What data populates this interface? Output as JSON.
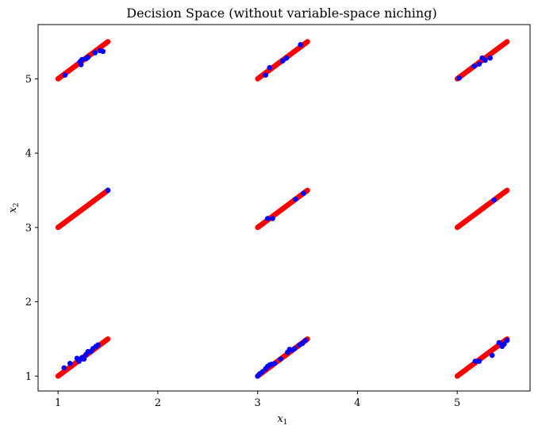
{
  "chart_data": {
    "type": "scatter",
    "title": "Decision Space (without variable-space niching)",
    "xlabel": "x",
    "xlabel_sub": "1",
    "ylabel": "x",
    "ylabel_sub": "2",
    "xlim": [
      0.8,
      5.73
    ],
    "ylim": [
      0.8,
      5.73
    ],
    "xticks": [
      1,
      2,
      3,
      4,
      5
    ],
    "yticks": [
      1,
      2,
      3,
      4,
      5
    ],
    "grid": false,
    "legend": "none",
    "series": [
      {
        "color": "#ff0000",
        "marker": "circle",
        "segments": [
          {
            "x0": 1.0,
            "y0": 1.0,
            "x1": 1.5,
            "y1": 1.5
          },
          {
            "x0": 1.0,
            "y0": 3.0,
            "x1": 1.5,
            "y1": 3.5
          },
          {
            "x0": 1.0,
            "y0": 5.0,
            "x1": 1.5,
            "y1": 5.5
          },
          {
            "x0": 3.0,
            "y0": 1.0,
            "x1": 3.5,
            "y1": 1.5
          },
          {
            "x0": 3.0,
            "y0": 3.0,
            "x1": 3.5,
            "y1": 3.5
          },
          {
            "x0": 3.0,
            "y0": 5.0,
            "x1": 3.5,
            "y1": 5.5
          },
          {
            "x0": 5.0,
            "y0": 1.0,
            "x1": 5.5,
            "y1": 1.5
          },
          {
            "x0": 5.0,
            "y0": 3.0,
            "x1": 5.5,
            "y1": 3.5
          },
          {
            "x0": 5.0,
            "y0": 5.0,
            "x1": 5.5,
            "y1": 5.5
          }
        ]
      },
      {
        "color": "#0000ff",
        "marker": "circle",
        "points": [
          [
            1.06,
            1.11
          ],
          [
            1.12,
            1.17
          ],
          [
            1.19,
            1.24
          ],
          [
            1.21,
            1.2
          ],
          [
            1.24,
            1.25
          ],
          [
            1.26,
            1.23
          ],
          [
            1.28,
            1.29
          ],
          [
            1.3,
            1.33
          ],
          [
            1.33,
            1.33
          ],
          [
            1.35,
            1.37
          ],
          [
            1.38,
            1.4
          ],
          [
            1.4,
            1.42
          ],
          [
            1.07,
            5.05
          ],
          [
            1.22,
            5.23
          ],
          [
            1.23,
            5.19
          ],
          [
            1.24,
            5.26
          ],
          [
            1.28,
            5.27
          ],
          [
            1.3,
            5.29
          ],
          [
            1.37,
            5.35
          ],
          [
            1.42,
            5.38
          ],
          [
            1.45,
            5.37
          ],
          [
            1.5,
            3.5
          ],
          [
            3.0,
            1.0
          ],
          [
            3.02,
            1.03
          ],
          [
            3.05,
            1.06
          ],
          [
            3.08,
            1.1
          ],
          [
            3.1,
            1.13
          ],
          [
            3.12,
            1.15
          ],
          [
            3.14,
            1.16
          ],
          [
            3.17,
            1.17
          ],
          [
            3.23,
            1.23
          ],
          [
            3.3,
            1.32
          ],
          [
            3.32,
            1.36
          ],
          [
            3.35,
            1.35
          ],
          [
            3.37,
            1.37
          ],
          [
            3.42,
            1.42
          ],
          [
            3.45,
            1.44
          ],
          [
            3.48,
            1.48
          ],
          [
            3.08,
            5.05
          ],
          [
            3.12,
            5.15
          ],
          [
            3.25,
            5.24
          ],
          [
            3.29,
            5.28
          ],
          [
            3.43,
            5.46
          ],
          [
            3.1,
            3.12
          ],
          [
            3.15,
            3.12
          ],
          [
            3.38,
            3.38
          ],
          [
            3.46,
            3.46
          ],
          [
            5.02,
            5.01
          ],
          [
            5.17,
            5.17
          ],
          [
            5.22,
            5.2
          ],
          [
            5.25,
            5.28
          ],
          [
            5.28,
            5.25
          ],
          [
            5.33,
            5.28
          ],
          [
            5.37,
            3.37
          ],
          [
            5.18,
            1.2
          ],
          [
            5.22,
            1.2
          ],
          [
            5.35,
            1.28
          ],
          [
            5.42,
            1.45
          ],
          [
            5.45,
            1.4
          ],
          [
            5.47,
            1.43
          ],
          [
            5.5,
            1.48
          ]
        ]
      }
    ]
  }
}
